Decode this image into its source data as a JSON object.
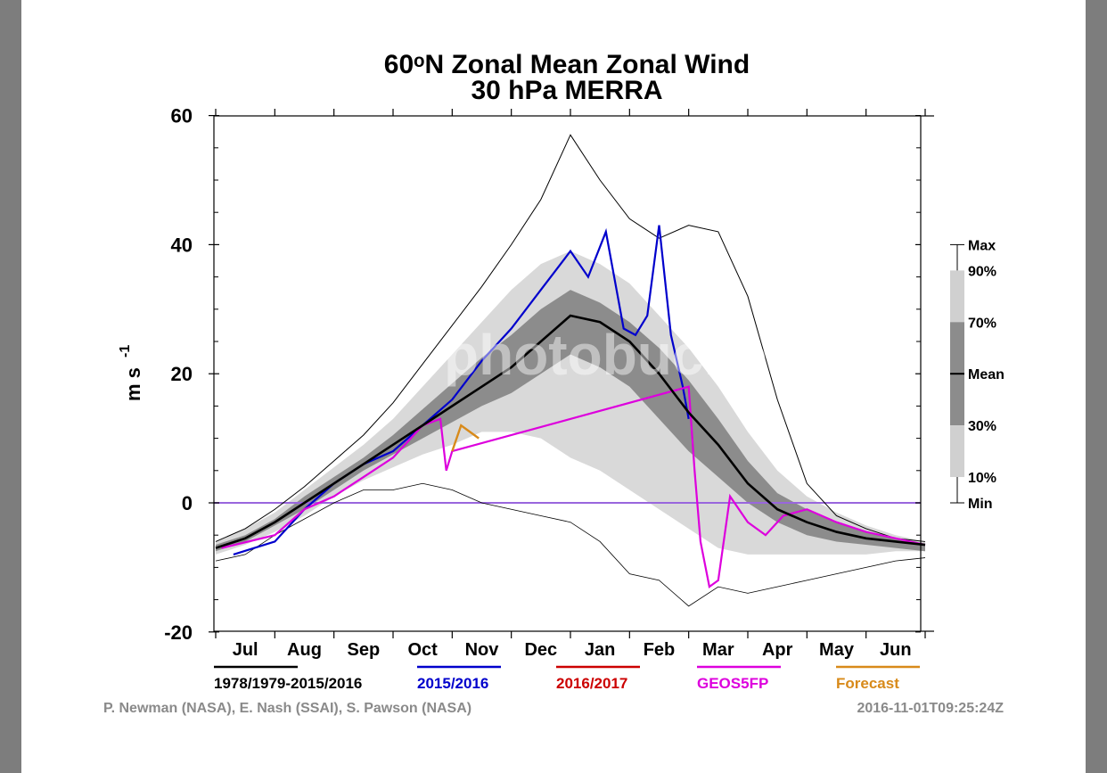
{
  "chart_data": {
    "type": "area",
    "title": "60ᵒN Zonal Mean Zonal Wind",
    "subtitle": "30 hPa   MERRA",
    "ylabel": "m s",
    "ylabel_superscript": "-1",
    "ylim": [
      -20,
      60
    ],
    "yticks": [
      "60",
      "40",
      "20",
      "0",
      "-20"
    ],
    "months": [
      "Jul",
      "Aug",
      "Sep",
      "Oct",
      "Nov",
      "Dec",
      "Jan",
      "Feb",
      "Mar",
      "Apr",
      "May",
      "Jun"
    ],
    "x_unit_note": "x values are month positions (0 = start of Jul, 12 = end of Jun)",
    "percentile_key": [
      "Max",
      "90%",
      "70%",
      "Mean",
      "30%",
      "10%",
      "Min"
    ],
    "legend": [
      {
        "label": "1978/1979-2015/2016",
        "color": "#000000"
      },
      {
        "label": "2015/2016",
        "color": "#0000cc"
      },
      {
        "label": "2016/2017",
        "color": "#cc0000"
      },
      {
        "label": "GEOS5FP",
        "color": "#dd00dd"
      },
      {
        "label": "Forecast",
        "color": "#d88a1a"
      }
    ],
    "credit": "P. Newman (NASA), E. Nash (SSAI), S. Pawson (NASA)",
    "timestamp": "2016-11-01T09:25:24Z",
    "watermark": "photobucket",
    "colors": {
      "p10_90": "#d9d9d9",
      "p30_70": "#8c8c8c",
      "zero_line": "#9966dd"
    },
    "mean": {
      "x": [
        0,
        0.5,
        1,
        1.5,
        2,
        2.5,
        3,
        3.5,
        4,
        4.5,
        5,
        5.5,
        6,
        6.5,
        7,
        7.5,
        8,
        8.5,
        9,
        9.5,
        10,
        10.5,
        11,
        11.5,
        12
      ],
      "y": [
        -7,
        -5.5,
        -3,
        0,
        3,
        6,
        9,
        12,
        15,
        18,
        21,
        25,
        29,
        28,
        25,
        20,
        14,
        9,
        3,
        -1,
        -3,
        -4.5,
        -5.5,
        -6,
        -6.5
      ]
    },
    "p90": [
      -6,
      -4,
      -1.5,
      2,
      5.5,
      9,
      13,
      18,
      23,
      28,
      33,
      37,
      39,
      37,
      34,
      29,
      24,
      18,
      11,
      5,
      1,
      -1.5,
      -3.5,
      -5,
      -6
    ],
    "p70": [
      -6.5,
      -5,
      -2.5,
      1,
      4,
      7,
      10.5,
      14.5,
      18.5,
      22.5,
      26,
      30,
      33,
      31,
      28,
      24,
      19,
      13,
      6.5,
      1.5,
      -1,
      -3,
      -4.5,
      -5.5,
      -6.5
    ],
    "p30": [
      -7.5,
      -6,
      -3.5,
      -1,
      2,
      5,
      7.5,
      10,
      12.5,
      15,
      17,
      20,
      23,
      21,
      18,
      13,
      8,
      4,
      0,
      -3,
      -5,
      -6,
      -6.5,
      -7,
      -7.5
    ],
    "p10": [
      -8,
      -6.5,
      -4.5,
      -2,
      1,
      3.5,
      5.5,
      7.5,
      9,
      11,
      11,
      10,
      7,
      5,
      2,
      -1,
      -4,
      -7,
      -8,
      -8,
      -8,
      -8,
      -8,
      -7.5,
      -7.5
    ],
    "max": [
      -6,
      -4,
      -1,
      2.5,
      6.5,
      10.5,
      15.5,
      21.5,
      27.5,
      33.5,
      40,
      47,
      57,
      50,
      44,
      41,
      43,
      42,
      32,
      16,
      3,
      -2,
      -4,
      -5.5,
      -6
    ],
    "min": [
      -9,
      -8,
      -5,
      -2.5,
      0,
      2,
      2,
      3,
      2,
      0,
      -1,
      -2,
      -3,
      -6,
      -11,
      -12,
      -16,
      -13,
      -14,
      -13,
      -12,
      -11,
      -10,
      -9,
      -8.5
    ],
    "series_2015_2016": {
      "x": [
        0.3,
        1,
        1.5,
        2,
        2.5,
        3,
        3.5,
        4,
        4.5,
        5,
        5.5,
        6,
        6.3,
        6.6,
        6.9,
        7.1,
        7.3,
        7.5,
        7.7,
        7.9,
        8
      ],
      "y": [
        -8,
        -6,
        -1,
        3,
        6,
        8,
        12,
        16,
        22,
        27,
        33,
        39,
        35,
        42,
        27,
        26,
        29,
        43,
        26,
        18,
        13
      ]
    },
    "series_geos5fp": {
      "x": [
        0.1,
        1,
        1.5,
        2,
        2.5,
        3,
        3.5,
        3.8,
        3.9,
        4,
        8,
        8.1,
        8.2,
        8.35,
        8.5,
        8.7,
        9,
        9.3,
        9.6,
        10,
        10.5,
        11,
        11.5,
        12
      ],
      "y": [
        -7,
        -5,
        -1,
        1,
        4,
        7,
        12,
        13,
        5,
        8,
        18,
        5,
        -6,
        -13,
        -12,
        1,
        -3,
        -5,
        -2,
        -1,
        -3,
        -4.5,
        -5.5,
        -6.5
      ]
    },
    "series_forecast": {
      "x": [
        4,
        4.15,
        4.3,
        4.45
      ],
      "y": [
        8,
        12,
        11,
        10
      ]
    }
  }
}
